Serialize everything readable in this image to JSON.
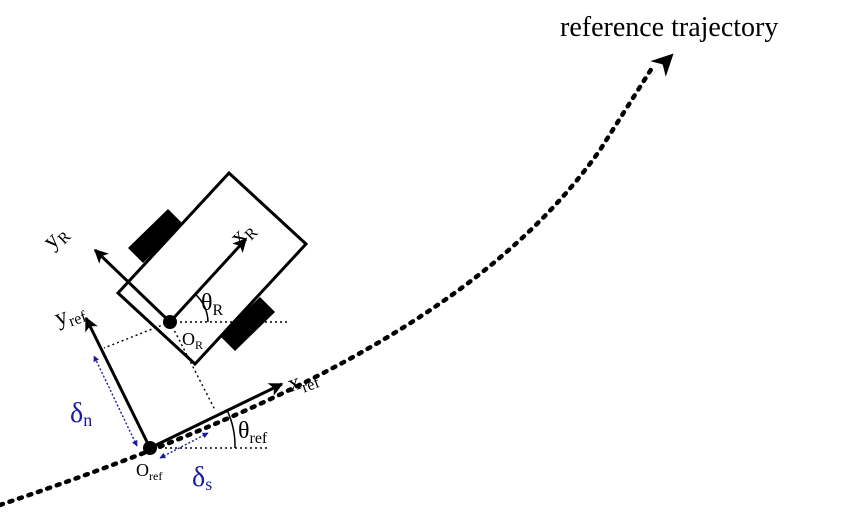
{
  "title": "reference trajectory",
  "labels": {
    "y_R": {
      "main": "y",
      "sub": "R"
    },
    "x_R": {
      "main": "x",
      "sub": "R"
    },
    "theta_R": {
      "main": "θ",
      "sub": "R"
    },
    "O_R": {
      "main": "O",
      "sub": "R"
    },
    "y_ref": {
      "main": "y",
      "sub": "ref"
    },
    "x_ref": {
      "main": "x",
      "sub": "ref"
    },
    "theta_ref": {
      "main": "θ",
      "sub": "ref"
    },
    "O_ref": {
      "main": "O",
      "sub": "ref"
    },
    "delta_n": {
      "main": "δ",
      "sub": "n"
    },
    "delta_s": {
      "main": "δ",
      "sub": "s"
    }
  },
  "colors": {
    "ink": "#000000",
    "offset": "#1a1aa8"
  }
}
